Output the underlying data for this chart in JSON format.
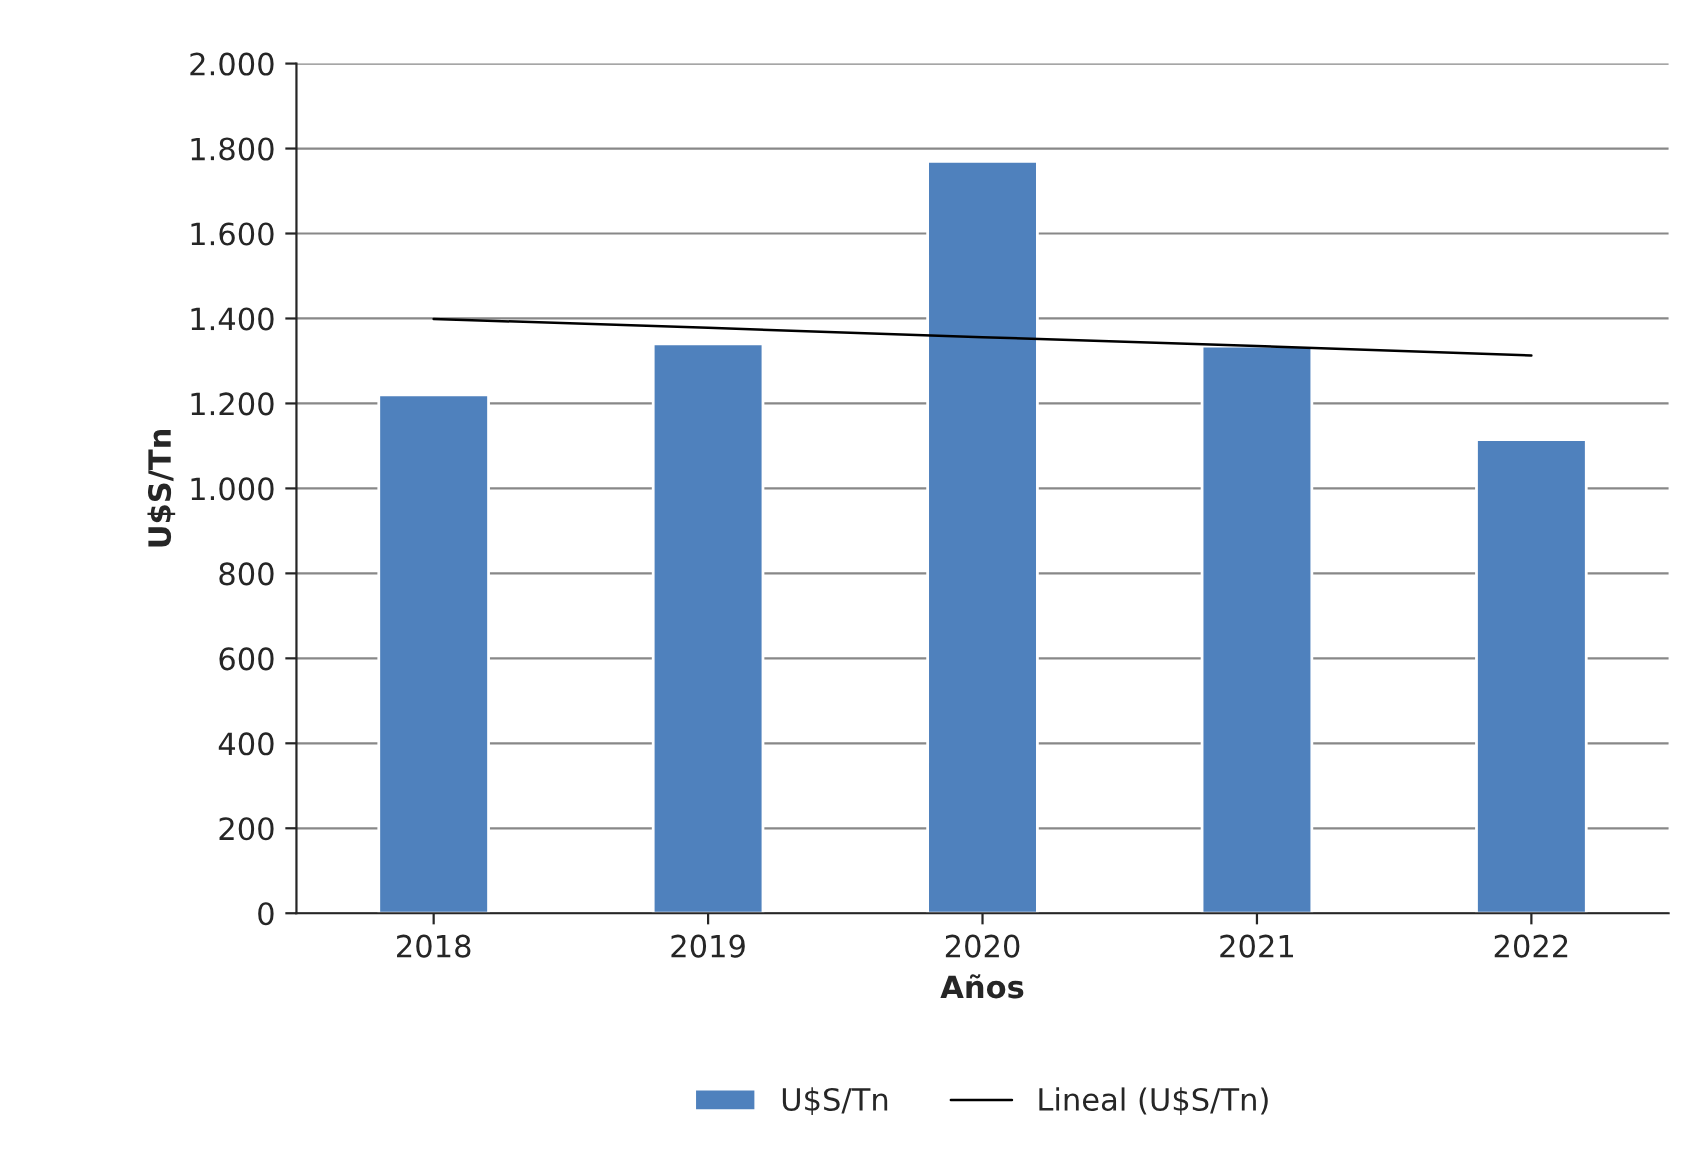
{
  "chart_data": {
    "type": "bar",
    "xlabel": "Años",
    "ylabel": "U$S/Tn",
    "categories": [
      "2018",
      "2019",
      "2020",
      "2021",
      "2022"
    ],
    "series": [
      {
        "name": "U$S/Tn",
        "color": "#4f81bd",
        "values": [
          1220,
          1340,
          1770,
          1335,
          1115
        ]
      },
      {
        "name": "Lineal (U$S/Tn)",
        "type": "line",
        "color": "#000000",
        "values": [
          1399,
          1378,
          1356,
          1335,
          1313
        ]
      }
    ],
    "ylim": [
      0,
      2000
    ],
    "yticks": [
      {
        "value": 0,
        "label": "0"
      },
      {
        "value": 200,
        "label": "200"
      },
      {
        "value": 400,
        "label": "400"
      },
      {
        "value": 600,
        "label": "600"
      },
      {
        "value": 800,
        "label": "800"
      },
      {
        "value": 1000,
        "label": "1.000"
      },
      {
        "value": 1200,
        "label": "1.200"
      },
      {
        "value": 1400,
        "label": "1.400"
      },
      {
        "value": 1600,
        "label": "1.600"
      },
      {
        "value": 1800,
        "label": "1.800"
      },
      {
        "value": 2000,
        "label": "2.000"
      }
    ],
    "grid": "y",
    "legend": "bottom"
  }
}
